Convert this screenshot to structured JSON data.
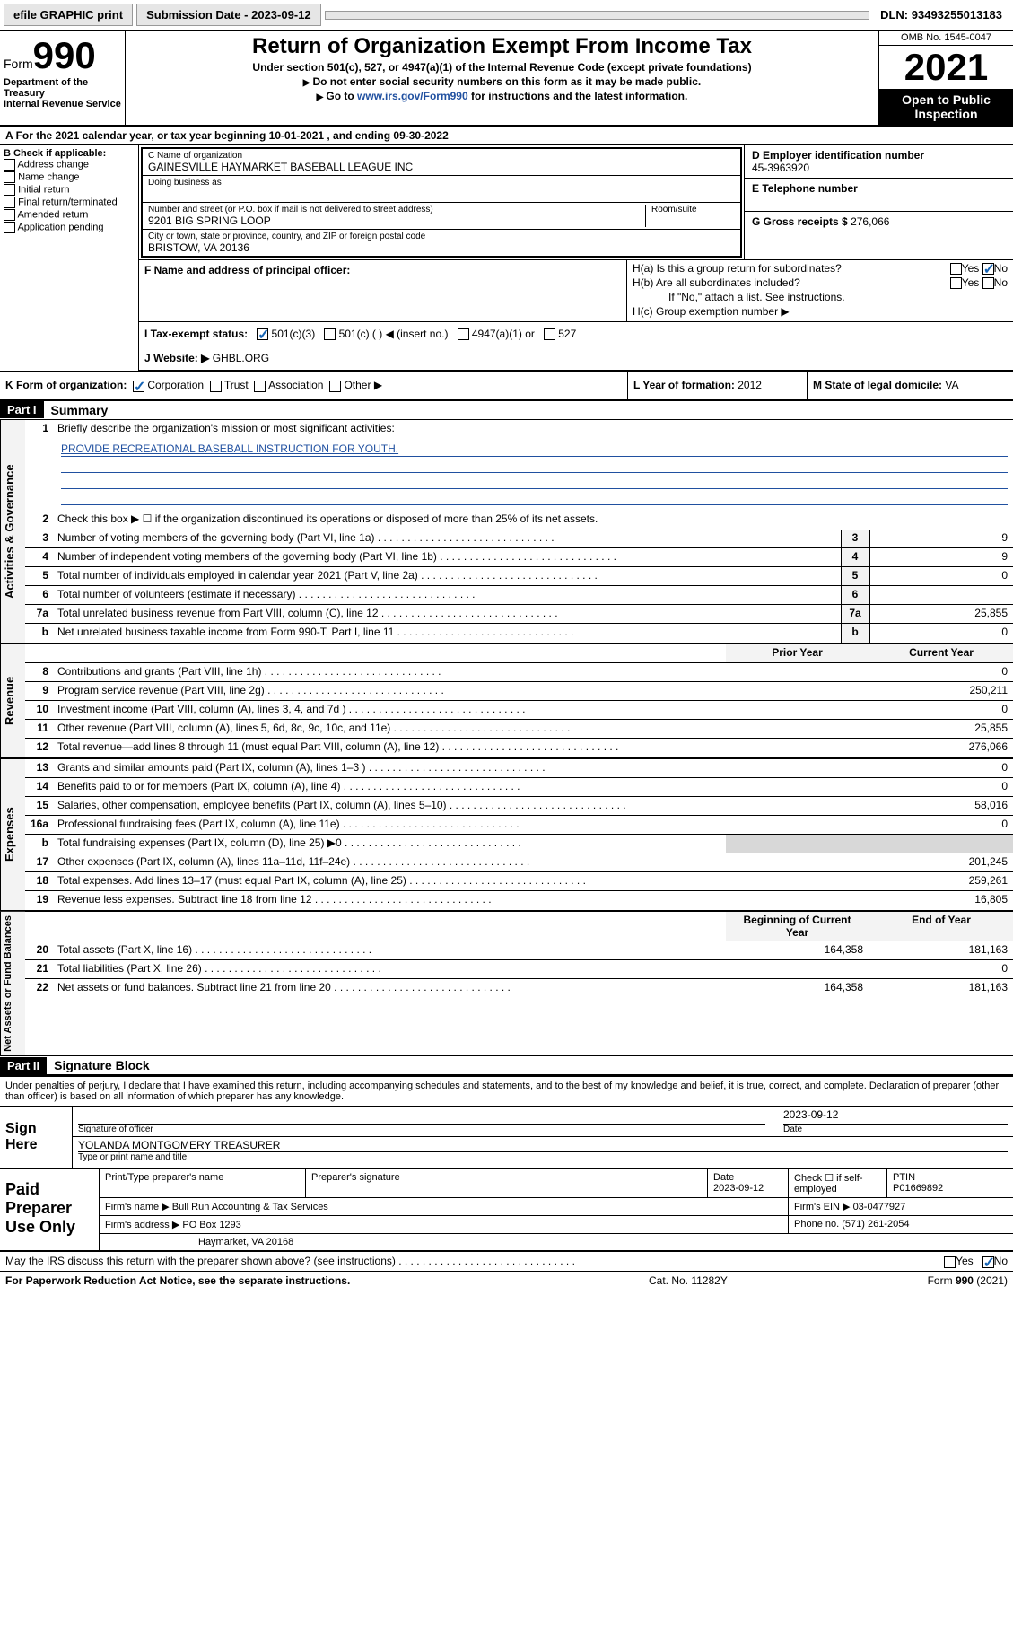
{
  "topbar": {
    "efile": "efile GRAPHIC print",
    "submission_label": "Submission Date - ",
    "submission_date": "2023-09-12",
    "dln_label": "DLN: ",
    "dln": "93493255013183"
  },
  "header": {
    "form_label": "Form",
    "form_number": "990",
    "title": "Return of Organization Exempt From Income Tax",
    "sub1": "Under section 501(c), 527, or 4947(a)(1) of the Internal Revenue Code (except private foundations)",
    "sub2": "Do not enter social security numbers on this form as it may be made public.",
    "sub3_pre": "Go to ",
    "sub3_link": "www.irs.gov/Form990",
    "sub3_post": " for instructions and the latest information.",
    "dept1": "Department of the Treasury",
    "dept2": "Internal Revenue Service",
    "omb": "OMB No. 1545-0047",
    "year": "2021",
    "inspection": "Open to Public Inspection"
  },
  "line_a": "For the 2021 calendar year, or tax year beginning 10-01-2021   , and ending 09-30-2022",
  "box_b": {
    "title": "B Check if applicable:",
    "items": [
      "Address change",
      "Name change",
      "Initial return",
      "Final return/terminated",
      "Amended return",
      "Application pending"
    ]
  },
  "box_c": {
    "name_label": "C Name of organization",
    "name": "GAINESVILLE HAYMARKET BASEBALL LEAGUE INC",
    "dba_label": "Doing business as",
    "addr_label": "Number and street (or P.O. box if mail is not delivered to street address)",
    "room_label": "Room/suite",
    "addr": "9201 BIG SPRING LOOP",
    "city_label": "City or town, state or province, country, and ZIP or foreign postal code",
    "city": "BRISTOW, VA  20136"
  },
  "box_d": {
    "label": "D Employer identification number",
    "value": "45-3963920"
  },
  "box_e": {
    "label": "E Telephone number",
    "value": ""
  },
  "box_g": {
    "label": "G Gross receipts $ ",
    "value": "276,066"
  },
  "box_f": {
    "label": "F  Name and address of principal officer:",
    "value": ""
  },
  "box_h": {
    "ha": "H(a)  Is this a group return for subordinates?",
    "hb": "H(b)  Are all subordinates included?",
    "hb_note": "If \"No,\" attach a list. See instructions.",
    "hc": "H(c)  Group exemption number ▶",
    "yes": "Yes",
    "no": "No"
  },
  "box_i": {
    "label": "I   Tax-exempt status:",
    "opt1": "501(c)(3)",
    "opt2": "501(c) (  ) ◀ (insert no.)",
    "opt3": "4947(a)(1) or",
    "opt4": "527"
  },
  "box_j": {
    "label": "J   Website: ▶",
    "value": "GHBL.ORG"
  },
  "box_k": {
    "label": "K Form of organization:",
    "opts": [
      "Corporation",
      "Trust",
      "Association",
      "Other ▶"
    ]
  },
  "box_l": {
    "label": "L Year of formation: ",
    "value": "2012"
  },
  "box_m": {
    "label": "M State of legal domicile: ",
    "value": "VA"
  },
  "part1": {
    "header": "Part I",
    "title": "Summary",
    "line1_label": "Briefly describe the organization's mission or most significant activities:",
    "line1_text": "PROVIDE RECREATIONAL BASEBALL INSTRUCTION FOR YOUTH.",
    "line2": "Check this box ▶ ☐  if the organization discontinued its operations or disposed of more than 25% of its net assets.",
    "side_labels": {
      "gov": "Activities & Governance",
      "rev": "Revenue",
      "exp": "Expenses",
      "net": "Net Assets or Fund Balances"
    },
    "governance": [
      {
        "n": "3",
        "d": "Number of voting members of the governing body (Part VI, line 1a)",
        "v": "9"
      },
      {
        "n": "4",
        "d": "Number of independent voting members of the governing body (Part VI, line 1b)",
        "v": "9"
      },
      {
        "n": "5",
        "d": "Total number of individuals employed in calendar year 2021 (Part V, line 2a)",
        "v": "0"
      },
      {
        "n": "6",
        "d": "Total number of volunteers (estimate if necessary)",
        "v": ""
      },
      {
        "n": "7a",
        "d": "Total unrelated business revenue from Part VIII, column (C), line 12",
        "v": "25,855"
      },
      {
        "n": "b",
        "d": "Net unrelated business taxable income from Form 990-T, Part I, line 11",
        "v": "0"
      }
    ],
    "col_headers": {
      "prior": "Prior Year",
      "current": "Current Year"
    },
    "revenue": [
      {
        "n": "8",
        "d": "Contributions and grants (Part VIII, line 1h)",
        "p": "",
        "c": "0"
      },
      {
        "n": "9",
        "d": "Program service revenue (Part VIII, line 2g)",
        "p": "",
        "c": "250,211"
      },
      {
        "n": "10",
        "d": "Investment income (Part VIII, column (A), lines 3, 4, and 7d )",
        "p": "",
        "c": "0"
      },
      {
        "n": "11",
        "d": "Other revenue (Part VIII, column (A), lines 5, 6d, 8c, 9c, 10c, and 11e)",
        "p": "",
        "c": "25,855"
      },
      {
        "n": "12",
        "d": "Total revenue—add lines 8 through 11 (must equal Part VIII, column (A), line 12)",
        "p": "",
        "c": "276,066"
      }
    ],
    "expenses": [
      {
        "n": "13",
        "d": "Grants and similar amounts paid (Part IX, column (A), lines 1–3 )",
        "p": "",
        "c": "0"
      },
      {
        "n": "14",
        "d": "Benefits paid to or for members (Part IX, column (A), line 4)",
        "p": "",
        "c": "0"
      },
      {
        "n": "15",
        "d": "Salaries, other compensation, employee benefits (Part IX, column (A), lines 5–10)",
        "p": "",
        "c": "58,016"
      },
      {
        "n": "16a",
        "d": "Professional fundraising fees (Part IX, column (A), line 11e)",
        "p": "",
        "c": "0"
      },
      {
        "n": "b",
        "d": "Total fundraising expenses (Part IX, column (D), line 25) ▶0",
        "p": "GRAY",
        "c": "GRAY"
      },
      {
        "n": "17",
        "d": "Other expenses (Part IX, column (A), lines 11a–11d, 11f–24e)",
        "p": "",
        "c": "201,245"
      },
      {
        "n": "18",
        "d": "Total expenses. Add lines 13–17 (must equal Part IX, column (A), line 25)",
        "p": "",
        "c": "259,261"
      },
      {
        "n": "19",
        "d": "Revenue less expenses. Subtract line 18 from line 12",
        "p": "",
        "c": "16,805"
      }
    ],
    "net_headers": {
      "begin": "Beginning of Current Year",
      "end": "End of Year"
    },
    "net": [
      {
        "n": "20",
        "d": "Total assets (Part X, line 16)",
        "p": "164,358",
        "c": "181,163"
      },
      {
        "n": "21",
        "d": "Total liabilities (Part X, line 26)",
        "p": "",
        "c": "0"
      },
      {
        "n": "22",
        "d": "Net assets or fund balances. Subtract line 21 from line 20",
        "p": "164,358",
        "c": "181,163"
      }
    ]
  },
  "part2": {
    "header": "Part II",
    "title": "Signature Block",
    "declaration": "Under penalties of perjury, I declare that I have examined this return, including accompanying schedules and statements, and to the best of my knowledge and belief, it is true, correct, and complete. Declaration of preparer (other than officer) is based on all information of which preparer has any knowledge.",
    "sign_here": "Sign Here",
    "sig_officer_label": "Signature of officer",
    "date_label": "Date",
    "sig_date": "2023-09-12",
    "name_title": "YOLANDA MONTGOMERY  TREASURER",
    "name_title_label": "Type or print name and title"
  },
  "paid": {
    "label": "Paid Preparer Use Only",
    "h1": "Print/Type preparer's name",
    "h2": "Preparer's signature",
    "h3_label": "Date",
    "h3_value": "2023-09-12",
    "h4": "Check ☐ if self-employed",
    "h5_label": "PTIN",
    "h5_value": "P01669892",
    "firm_name_label": "Firm's name    ▶",
    "firm_name": "Bull Run Accounting & Tax Services",
    "firm_ein_label": "Firm's EIN ▶",
    "firm_ein": "03-0477927",
    "firm_addr_label": "Firm's address ▶",
    "firm_addr1": "PO Box 1293",
    "firm_addr2": "Haymarket, VA  20168",
    "phone_label": "Phone no. ",
    "phone": "(571) 261-2054"
  },
  "discuss": {
    "text": "May the IRS discuss this return with the preparer shown above? (see instructions)",
    "yes": "Yes",
    "no": "No"
  },
  "footer": {
    "left": "For Paperwork Reduction Act Notice, see the separate instructions.",
    "mid": "Cat. No. 11282Y",
    "right": "Form 990 (2021)"
  }
}
